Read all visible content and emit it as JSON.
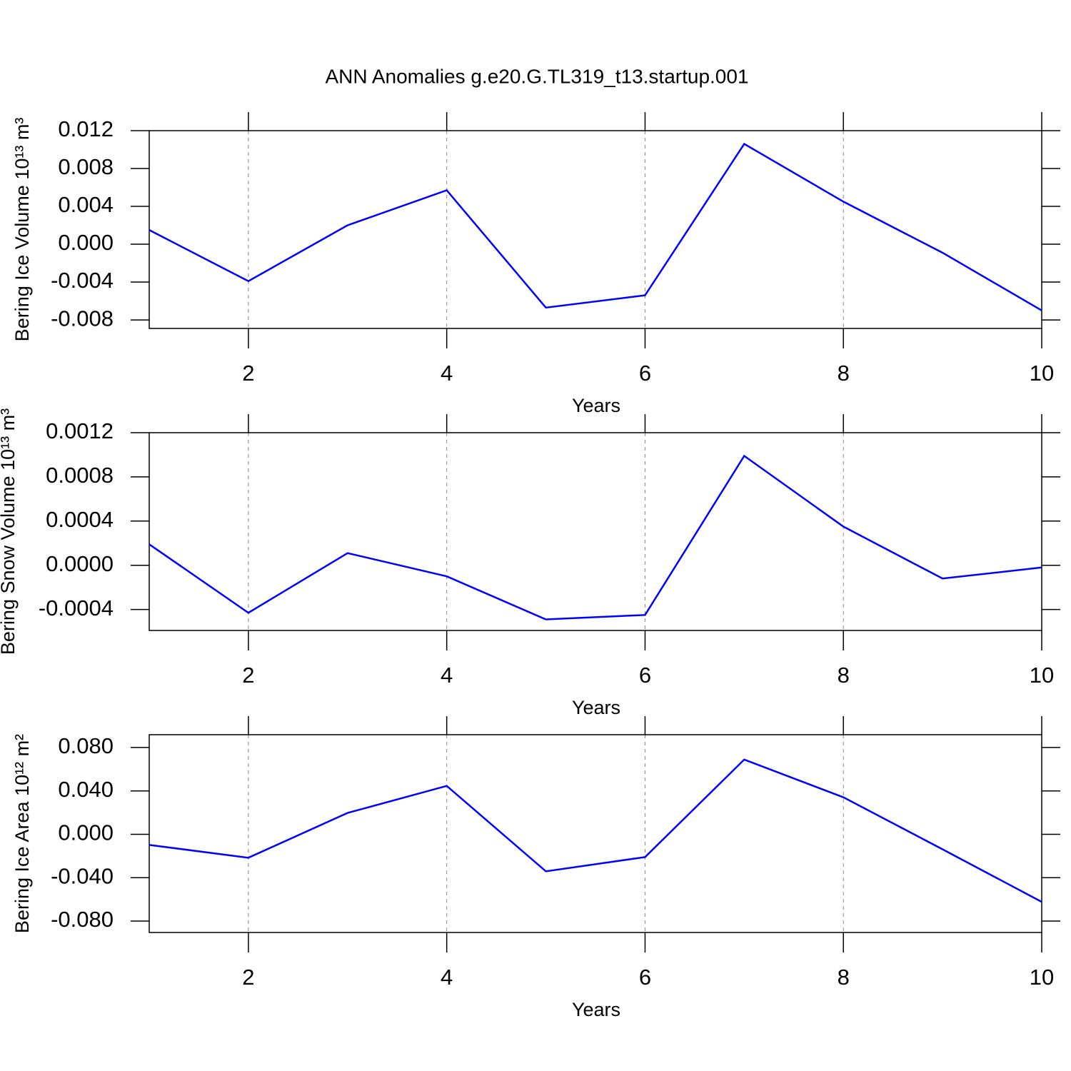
{
  "title": "ANN Anomalies g.e20.G.TL319_t13.startup.001",
  "chart_data": [
    {
      "type": "line",
      "ylabel": "Bering Ice Volume 10¹³ m³",
      "xlabel": "Years",
      "x": [
        1,
        2,
        3,
        4,
        5,
        6,
        7,
        8,
        9,
        10
      ],
      "series": [
        {
          "color": "#0000ff",
          "values": [
            0.0015,
            -0.0039,
            0.002,
            0.0057,
            -0.0067,
            -0.0054,
            0.0106,
            0.0045,
            -0.0009,
            -0.007
          ]
        }
      ],
      "xlim": [
        1,
        10
      ],
      "xticks": [
        2,
        4,
        6,
        8,
        10
      ],
      "ylim": [
        -0.0089,
        0.012
      ],
      "yticks": [
        0.012,
        0.008,
        0.004,
        {
          "value": 0,
          "label": "0.000"
        },
        -0.004,
        -0.008
      ],
      "grid": true
    },
    {
      "type": "line",
      "ylabel": "Bering Snow Volume 10¹³ m³",
      "xlabel": "Years",
      "x": [
        1,
        2,
        3,
        4,
        5,
        6,
        7,
        8,
        9,
        10
      ],
      "series": [
        {
          "color": "#0000ff",
          "values": [
            0.00019,
            -0.00043,
            0.00011,
            -0.0001,
            -0.00049,
            -0.00045,
            0.00099,
            0.00035,
            -0.00012,
            -2e-05
          ]
        }
      ],
      "xlim": [
        1,
        10
      ],
      "xticks": [
        2,
        4,
        6,
        8,
        10
      ],
      "ylim": [
        -0.00059,
        0.0012
      ],
      "yticks": [
        0.0012,
        0.0008,
        0.0004,
        {
          "value": 0,
          "label": "0.0000"
        },
        -0.0004
      ],
      "grid": true
    },
    {
      "type": "line",
      "ylabel": "Bering Ice Area 10¹² m²",
      "xlabel": "Years",
      "x": [
        1,
        2,
        3,
        4,
        5,
        6,
        7,
        8,
        9,
        10
      ],
      "series": [
        {
          "color": "#0000ff",
          "values": [
            -0.0098,
            -0.0216,
            0.0197,
            0.0446,
            -0.0341,
            -0.021,
            0.0689,
            0.0341,
            -0.0138,
            -0.0623
          ]
        }
      ],
      "xlim": [
        1,
        10
      ],
      "xticks": [
        2,
        4,
        6,
        8,
        10
      ],
      "ylim": [
        -0.0905,
        0.0918
      ],
      "yticks": [
        {
          "value": 0.08,
          "label": "0.080"
        },
        {
          "value": 0.04,
          "label": "0.040"
        },
        {
          "value": 0,
          "label": "0.000"
        },
        {
          "value": -0.04,
          "label": "-0.040"
        },
        {
          "value": -0.08,
          "label": "-0.080"
        }
      ],
      "grid": true
    }
  ]
}
